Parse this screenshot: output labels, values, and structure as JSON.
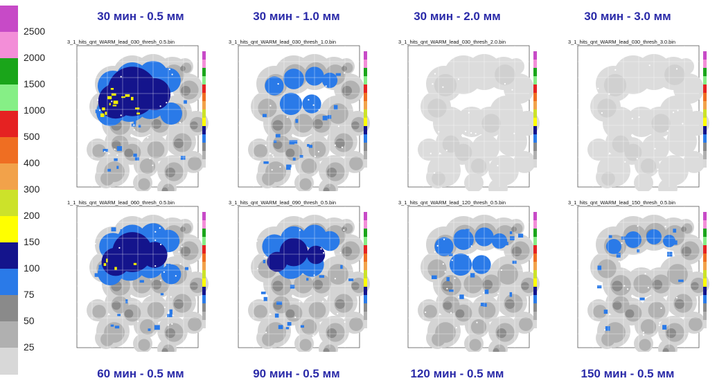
{
  "legend": {
    "labels": [
      "2500",
      "2000",
      "1500",
      "1000",
      "500",
      "400",
      "300",
      "200",
      "150",
      "100",
      "75",
      "50",
      "25"
    ],
    "colors": [
      "#c74ac7",
      "#f38ed8",
      "#1aa51a",
      "#86ef86",
      "#e52222",
      "#ef6e22",
      "#f2a24a",
      "#cce22a",
      "#ffff00",
      "#14148c",
      "#2a7ae8",
      "#8a8a8a",
      "#b0b0b0",
      "#d8d8d8"
    ]
  },
  "panels": [
    {
      "title": "30 мин - 0.5 мм",
      "file": "3_1_hits_qnt_WARM_lead_030_thresh_0.5.bin",
      "level": 0
    },
    {
      "title": "30 мин - 1.0 мм",
      "file": "3_1_hits_qnt_WARM_lead_030_thresh_1.0.bin",
      "level": 3
    },
    {
      "title": "30 мин - 2.0 мм",
      "file": "3_1_hits_qnt_WARM_lead_030_thresh_2.0.bin",
      "level": 5
    },
    {
      "title": "30 мин - 3.0 мм",
      "file": "3_1_hits_qnt_WARM_lead_030_thresh_3.0.bin",
      "level": 6
    },
    {
      "title": "60 мин - 0.5 мм",
      "file": "1_1_hits_qnt_WARM_lead_060_thresh_0.5.bin",
      "level": 1
    },
    {
      "title": "90 мин - 0.5 мм",
      "file": "3_1_hits_qnt_WARM_lead_090_thresh_0.5.bin",
      "level": 2
    },
    {
      "title": "120 мин - 0.5 мм",
      "file": "3_1_hits_qnt_WARM_lead_120_thresh_0.5.bin",
      "level": 3
    },
    {
      "title": "150 мин - 0.5 мм",
      "file": "3_1_hits_qnt_WARM_lead_150_thresh_0.5.bin",
      "level": 4
    }
  ]
}
